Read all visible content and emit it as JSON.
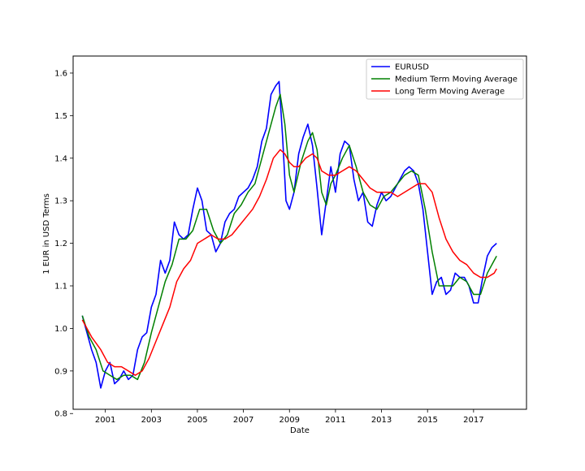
{
  "chart_data": {
    "type": "line",
    "title": "",
    "xlabel": "Date",
    "ylabel": "1 EUR in USD Terms",
    "xlim": [
      1999.6,
      2019.3
    ],
    "ylim": [
      0.81,
      1.64
    ],
    "grid": false,
    "legend_position": "top-right",
    "x_ticks": [
      2001,
      2003,
      2005,
      2007,
      2009,
      2011,
      2013,
      2015,
      2017
    ],
    "x_tick_labels": [
      "2001",
      "2003",
      "2005",
      "2007",
      "2009",
      "2011",
      "2013",
      "2015",
      "2017"
    ],
    "y_ticks": [
      0.8,
      0.9,
      1.0,
      1.1,
      1.2,
      1.3,
      1.4,
      1.5,
      1.6
    ],
    "y_tick_labels": [
      "0.8",
      "0.9",
      "1.0",
      "1.1",
      "1.2",
      "1.3",
      "1.4",
      "1.5",
      "1.6"
    ],
    "series": [
      {
        "name": "EURUSD",
        "color": "#0000ff",
        "x": [
          2000.0,
          2000.2,
          2000.4,
          2000.6,
          2000.8,
          2001.0,
          2001.2,
          2001.4,
          2001.6,
          2001.8,
          2002.0,
          2002.2,
          2002.4,
          2002.6,
          2002.8,
          2003.0,
          2003.2,
          2003.4,
          2003.6,
          2003.8,
          2004.0,
          2004.2,
          2004.4,
          2004.6,
          2004.8,
          2005.0,
          2005.2,
          2005.4,
          2005.6,
          2005.8,
          2006.0,
          2006.2,
          2006.4,
          2006.6,
          2006.8,
          2007.0,
          2007.2,
          2007.4,
          2007.6,
          2007.8,
          2008.0,
          2008.2,
          2008.4,
          2008.55,
          2008.7,
          2008.85,
          2009.0,
          2009.2,
          2009.4,
          2009.6,
          2009.8,
          2010.0,
          2010.2,
          2010.4,
          2010.6,
          2010.8,
          2011.0,
          2011.2,
          2011.4,
          2011.6,
          2011.8,
          2012.0,
          2012.2,
          2012.4,
          2012.6,
          2012.8,
          2013.0,
          2013.2,
          2013.4,
          2013.6,
          2013.8,
          2014.0,
          2014.2,
          2014.4,
          2014.6,
          2014.8,
          2015.0,
          2015.2,
          2015.4,
          2015.6,
          2015.8,
          2016.0,
          2016.2,
          2016.4,
          2016.6,
          2016.8,
          2017.0,
          2017.2,
          2017.4,
          2017.6,
          2017.8,
          2018.0
        ],
        "y": [
          1.03,
          0.99,
          0.95,
          0.92,
          0.86,
          0.9,
          0.92,
          0.87,
          0.88,
          0.9,
          0.88,
          0.89,
          0.95,
          0.98,
          0.99,
          1.05,
          1.08,
          1.16,
          1.13,
          1.16,
          1.25,
          1.22,
          1.21,
          1.22,
          1.28,
          1.33,
          1.3,
          1.23,
          1.22,
          1.18,
          1.2,
          1.25,
          1.27,
          1.28,
          1.31,
          1.32,
          1.33,
          1.35,
          1.38,
          1.44,
          1.47,
          1.55,
          1.57,
          1.58,
          1.45,
          1.3,
          1.28,
          1.32,
          1.41,
          1.45,
          1.48,
          1.43,
          1.33,
          1.22,
          1.3,
          1.38,
          1.32,
          1.41,
          1.44,
          1.43,
          1.35,
          1.3,
          1.32,
          1.25,
          1.24,
          1.29,
          1.32,
          1.3,
          1.31,
          1.33,
          1.35,
          1.37,
          1.38,
          1.37,
          1.34,
          1.28,
          1.18,
          1.08,
          1.11,
          1.12,
          1.08,
          1.09,
          1.13,
          1.12,
          1.12,
          1.1,
          1.06,
          1.06,
          1.12,
          1.17,
          1.19,
          1.2
        ]
      },
      {
        "name": "Medium Term Moving Average",
        "color": "#008000",
        "x": [
          2000.0,
          2000.3,
          2000.6,
          2000.9,
          2001.2,
          2001.5,
          2001.8,
          2002.1,
          2002.4,
          2002.7,
          2003.0,
          2003.3,
          2003.6,
          2003.9,
          2004.2,
          2004.5,
          2004.8,
          2005.1,
          2005.4,
          2005.7,
          2006.0,
          2006.3,
          2006.6,
          2006.9,
          2007.2,
          2007.5,
          2007.8,
          2008.1,
          2008.4,
          2008.6,
          2008.8,
          2009.0,
          2009.2,
          2009.5,
          2009.8,
          2010.0,
          2010.2,
          2010.4,
          2010.6,
          2010.8,
          2011.0,
          2011.3,
          2011.6,
          2011.9,
          2012.2,
          2012.5,
          2012.8,
          2013.1,
          2013.4,
          2013.7,
          2014.0,
          2014.3,
          2014.6,
          2014.9,
          2015.2,
          2015.5,
          2015.8,
          2016.1,
          2016.4,
          2016.7,
          2017.0,
          2017.3,
          2017.6,
          2017.9,
          2018.0
        ],
        "y": [
          1.03,
          0.98,
          0.95,
          0.9,
          0.89,
          0.88,
          0.89,
          0.89,
          0.88,
          0.92,
          0.99,
          1.05,
          1.11,
          1.15,
          1.21,
          1.21,
          1.23,
          1.28,
          1.28,
          1.23,
          1.2,
          1.22,
          1.27,
          1.29,
          1.32,
          1.34,
          1.4,
          1.46,
          1.52,
          1.55,
          1.48,
          1.36,
          1.32,
          1.39,
          1.44,
          1.46,
          1.42,
          1.32,
          1.29,
          1.34,
          1.36,
          1.4,
          1.43,
          1.38,
          1.32,
          1.29,
          1.28,
          1.31,
          1.32,
          1.34,
          1.36,
          1.37,
          1.36,
          1.28,
          1.18,
          1.1,
          1.1,
          1.1,
          1.12,
          1.11,
          1.08,
          1.08,
          1.13,
          1.16,
          1.17
        ]
      },
      {
        "name": "Long Term Moving Average",
        "color": "#ff0000",
        "x": [
          2000.0,
          2000.4,
          2000.8,
          2001.1,
          2001.4,
          2001.7,
          2002.0,
          2002.3,
          2002.6,
          2002.9,
          2003.2,
          2003.5,
          2003.8,
          2004.1,
          2004.4,
          2004.7,
          2005.0,
          2005.3,
          2005.6,
          2005.9,
          2006.2,
          2006.5,
          2006.8,
          2007.1,
          2007.4,
          2007.7,
          2008.0,
          2008.3,
          2008.6,
          2008.8,
          2009.0,
          2009.2,
          2009.4,
          2009.7,
          2010.0,
          2010.2,
          2010.4,
          2010.7,
          2011.0,
          2011.3,
          2011.6,
          2011.9,
          2012.2,
          2012.5,
          2012.8,
          2013.1,
          2013.4,
          2013.7,
          2014.0,
          2014.3,
          2014.6,
          2014.9,
          2015.2,
          2015.5,
          2015.8,
          2016.1,
          2016.4,
          2016.7,
          2017.0,
          2017.3,
          2017.6,
          2017.9,
          2018.0
        ],
        "y": [
          1.02,
          0.98,
          0.95,
          0.92,
          0.91,
          0.91,
          0.9,
          0.89,
          0.9,
          0.93,
          0.97,
          1.01,
          1.05,
          1.11,
          1.14,
          1.16,
          1.2,
          1.21,
          1.22,
          1.21,
          1.21,
          1.22,
          1.24,
          1.26,
          1.28,
          1.31,
          1.35,
          1.4,
          1.42,
          1.41,
          1.39,
          1.38,
          1.38,
          1.4,
          1.41,
          1.4,
          1.37,
          1.36,
          1.36,
          1.37,
          1.38,
          1.37,
          1.35,
          1.33,
          1.32,
          1.32,
          1.32,
          1.31,
          1.32,
          1.33,
          1.34,
          1.34,
          1.32,
          1.26,
          1.21,
          1.18,
          1.16,
          1.15,
          1.13,
          1.12,
          1.12,
          1.13,
          1.14
        ]
      }
    ]
  }
}
